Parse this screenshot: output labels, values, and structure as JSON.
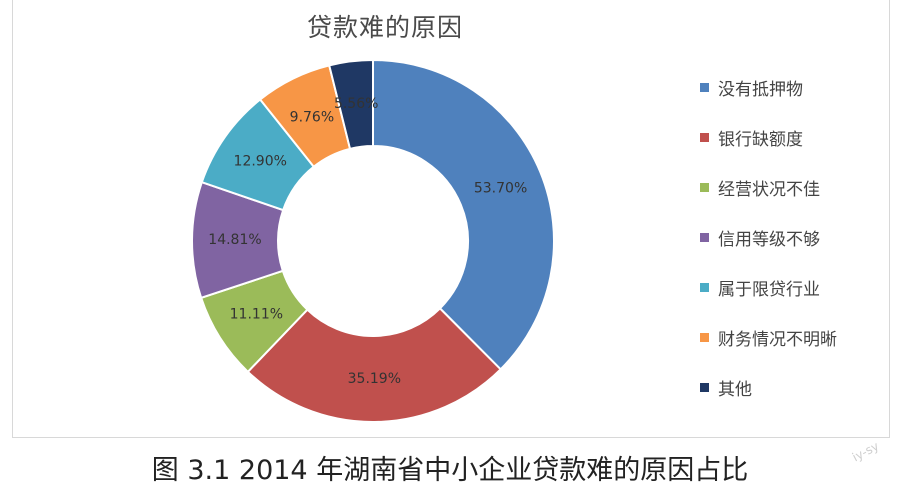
{
  "chart_data": {
    "type": "pie",
    "title": "贷款难的原因",
    "categories": [
      "没有抵押物",
      "银行缺额度",
      "经营状况不佳",
      "信用等级不够",
      "属于限贷行业",
      "财务情况不明晰",
      "其他"
    ],
    "values": [
      53.7,
      35.19,
      11.11,
      14.81,
      12.9,
      9.76,
      5.56
    ],
    "value_labels": [
      "53.70%",
      "35.19%",
      "11.11%",
      "14.81%",
      "12.90%",
      "9.76%",
      "5.56%"
    ],
    "colors": [
      "#4f81bd",
      "#c0504d",
      "#9bbb59",
      "#8064a2",
      "#4bacc6",
      "#f79646",
      "#1f3864"
    ],
    "legend_position": "right",
    "donut": true
  },
  "caption": "图 3.1   2014 年湖南省中小企业贷款难的原因占比",
  "watermark": "iy-sy"
}
